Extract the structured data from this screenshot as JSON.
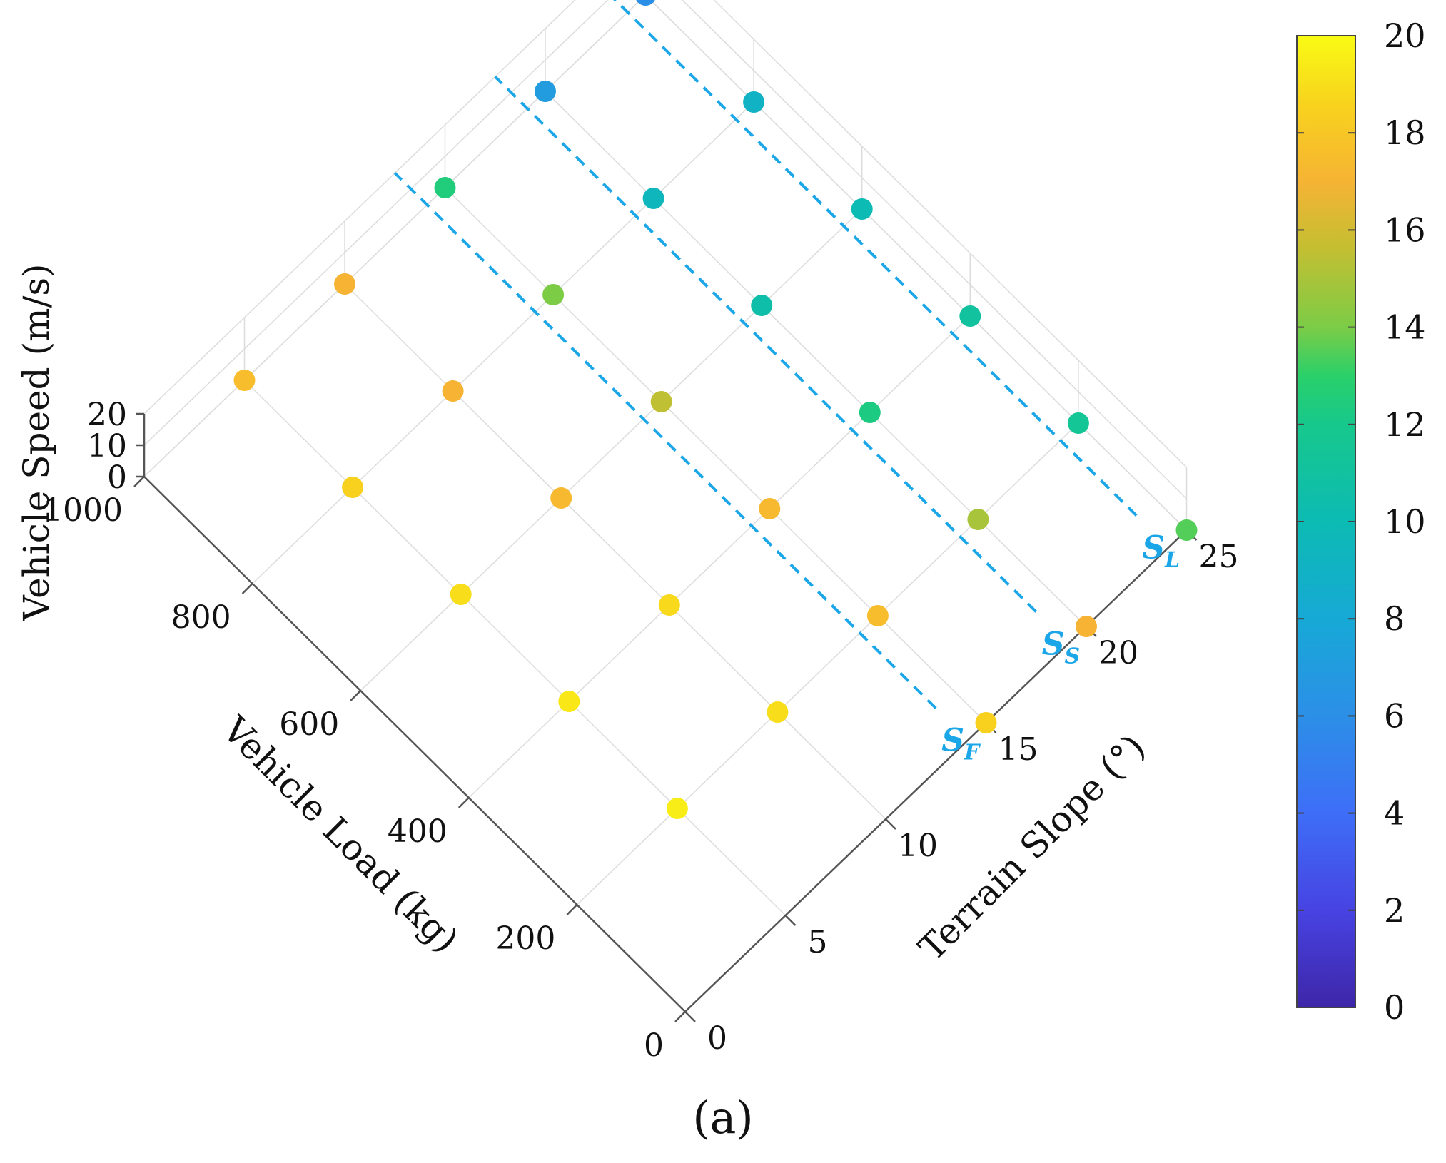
{
  "caption": "(a)",
  "colors": {
    "dashed_line": "#1ba6e8",
    "axis": "#555555",
    "grid": "#dcdcdc"
  },
  "chart_data": {
    "type": "scatter3d",
    "view": "top-down",
    "xlabel": "Terrain Slope (°)",
    "ylabel": "Vehicle Load (kg)",
    "zlabel": "Vehicle Speed (m/s)",
    "xlim": [
      0,
      25
    ],
    "ylim": [
      0,
      1000
    ],
    "zlim": [
      0,
      20
    ],
    "x_ticks": [
      "0",
      "5",
      "10",
      "15",
      "20",
      "25"
    ],
    "y_ticks": [
      "0",
      "200",
      "400",
      "600",
      "800",
      "1000"
    ],
    "z_ticks": [
      "0",
      "10",
      "20"
    ],
    "colorbar": {
      "range": [
        0,
        20
      ],
      "ticks": [
        "0",
        "2",
        "4",
        "6",
        "8",
        "10",
        "12",
        "14",
        "16",
        "18",
        "20"
      ],
      "colormap": "parula"
    },
    "points": [
      {
        "slope": 5,
        "load": 200,
        "speed": 19.5
      },
      {
        "slope": 5,
        "load": 400,
        "speed": 19.3
      },
      {
        "slope": 5,
        "load": 600,
        "speed": 19.0
      },
      {
        "slope": 5,
        "load": 800,
        "speed": 18.5
      },
      {
        "slope": 5,
        "load": 1000,
        "speed": 17.5
      },
      {
        "slope": 10,
        "load": 200,
        "speed": 19.0
      },
      {
        "slope": 10,
        "load": 400,
        "speed": 18.8
      },
      {
        "slope": 10,
        "load": 600,
        "speed": 17.3
      },
      {
        "slope": 10,
        "load": 800,
        "speed": 17.0
      },
      {
        "slope": 10,
        "load": 1000,
        "speed": 17.0
      },
      {
        "slope": 15,
        "load": 0,
        "speed": 18.5
      },
      {
        "slope": 15,
        "load": 200,
        "speed": 17.5
      },
      {
        "slope": 15,
        "load": 400,
        "speed": 17.3
      },
      {
        "slope": 15,
        "load": 600,
        "speed": 15.5
      },
      {
        "slope": 15,
        "load": 800,
        "speed": 14.0
      },
      {
        "slope": 15,
        "load": 1000,
        "speed": 12.5
      },
      {
        "slope": 20,
        "load": 0,
        "speed": 17.0
      },
      {
        "slope": 20,
        "load": 200,
        "speed": 15.0
      },
      {
        "slope": 20,
        "load": 400,
        "speed": 12.3
      },
      {
        "slope": 20,
        "load": 600,
        "speed": 10.5
      },
      {
        "slope": 20,
        "load": 800,
        "speed": 9.5
      },
      {
        "slope": 20,
        "load": 1000,
        "speed": 7.0
      },
      {
        "slope": 25,
        "load": 0,
        "speed": 13.5
      },
      {
        "slope": 25,
        "load": 200,
        "speed": 11.5
      },
      {
        "slope": 25,
        "load": 400,
        "speed": 11.0
      },
      {
        "slope": 25,
        "load": 600,
        "speed": 10.0
      },
      {
        "slope": 25,
        "load": 800,
        "speed": 9.0
      },
      {
        "slope": 25,
        "load": 1000,
        "speed": 6.0
      }
    ],
    "lines": [
      {
        "label": "S",
        "sub": "F",
        "slope": 12.5,
        "load_from": 0,
        "load_to": 1000
      },
      {
        "label": "S",
        "sub": "S",
        "slope": 17.5,
        "load_from": 0,
        "load_to": 1000
      },
      {
        "label": "S",
        "sub": "L",
        "slope": 22.5,
        "load_from": 0,
        "load_to": 1000
      }
    ]
  }
}
